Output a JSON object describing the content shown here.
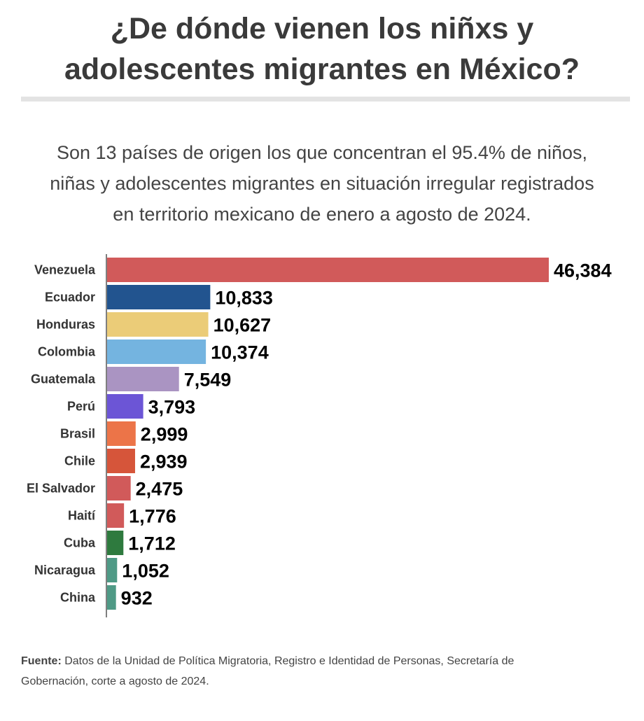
{
  "header": {
    "title_line1": "¿De dónde vienen los niñxs y",
    "title_line2": "adolescentes migrantes en México?",
    "subtitle_line1": "Son 13 países de origen los que concentran el 95.4% de niños,",
    "subtitle_line2": "niñas y adolescentes migrantes en situación irregular registrados",
    "subtitle_line3": "en territorio mexicano de enero a agosto de 2024."
  },
  "chart_data": {
    "type": "bar",
    "orientation": "horizontal",
    "categories": [
      "Venezuela",
      "Ecuador",
      "Honduras",
      "Colombia",
      "Guatemala",
      "Perú",
      "Brasil",
      "Chile",
      "El Salvador",
      "Haití",
      "Cuba",
      "Nicaragua",
      "China"
    ],
    "values": [
      46384,
      10833,
      10627,
      10374,
      7549,
      3793,
      2999,
      2939,
      2475,
      1776,
      1712,
      1052,
      932
    ],
    "value_labels": [
      "46,384",
      "10,833",
      "10,627",
      "10,374",
      "7,549",
      "3,793",
      "2,999",
      "2,939",
      "2,475",
      "1,776",
      "1,712",
      "1,052",
      "932"
    ],
    "colors": [
      "#d15a5a",
      "#22548f",
      "#ebcc78",
      "#74b4e0",
      "#aa94c2",
      "#6c55d6",
      "#ec7448",
      "#d6553a",
      "#d15a5a",
      "#d15a5a",
      "#2e7a3e",
      "#4f9a86",
      "#4f9a86"
    ],
    "xlim": [
      0,
      46384
    ],
    "grid": false,
    "legend": "none"
  },
  "footer": {
    "source_label": "Fuente:",
    "source_text_line1": " Datos de la Unidad de Política Migratoria, Registro e Identidad de Personas, Secretaría de",
    "source_text_line2": "Gobernación, corte a agosto de 2024."
  }
}
